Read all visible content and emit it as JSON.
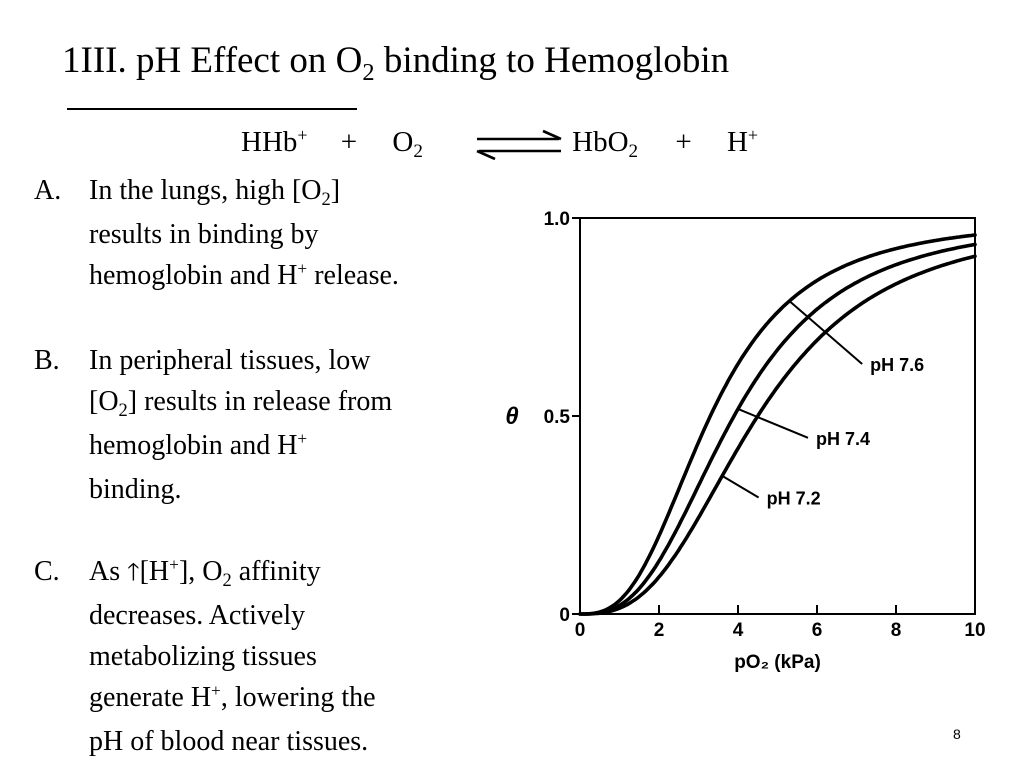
{
  "slide": {
    "title": {
      "main": "1III. pH Effect on O",
      "sub": "2",
      "rest": " binding to Hemoglobin"
    },
    "equation": {
      "reactant1": {
        "text": "HHb",
        "sup": "+"
      },
      "plus1": "+",
      "reactant2": {
        "text": "O",
        "sub": "2"
      },
      "product1": {
        "text": "HbO",
        "sub": "2"
      },
      "plus2": "+",
      "product2": {
        "text": "H",
        "sup": "+"
      }
    },
    "points": {
      "a": {
        "letter": "A.",
        "l1a": "In the lungs, high [O",
        "l1sub": "2",
        "l1b": "]",
        "l2": "results in binding by",
        "l3a": "hemoglobin and H",
        "l3sup": "+",
        "l3b": " release."
      },
      "b": {
        "letter": "B.",
        "l1": "In peripheral tissues, low",
        "l2a": "[O",
        "l2sub": "2",
        "l2b": "] results in release from",
        "l3a": "hemoglobin and H",
        "l3sup": "+",
        "l4": "binding."
      },
      "c": {
        "letter": "C.",
        "l1a": "As ",
        "l1arrow": "🡑",
        "l1b": "[H",
        "l1sup": "+",
        "l1c": "], O",
        "l1sub": "2",
        "l1d": " affinity",
        "l2": "decreases. Actively",
        "l3": "metabolizing tissues",
        "l4a": "generate H",
        "l4sup": "+",
        "l4b": ", lowering the",
        "l5": "pH of blood near tissues."
      }
    },
    "page_number": "8"
  },
  "chart_data": {
    "type": "line",
    "xlabel": "pO₂ (kPa)",
    "ylabel": "θ",
    "xlim": [
      0,
      10
    ],
    "ylim": [
      0,
      1.0
    ],
    "x_ticks": [
      "0",
      "2",
      "4",
      "6",
      "8",
      "10"
    ],
    "y_ticks": [
      "0",
      "0.5",
      "1.0"
    ],
    "grid": false,
    "series": [
      {
        "name": "pH 7.6",
        "p50": 3.3,
        "hill_n": 2.8,
        "label_at": 5.3
      },
      {
        "name": "pH 7.4",
        "p50": 3.9,
        "hill_n": 2.8,
        "label_at": 4.0
      },
      {
        "name": "pH 7.2",
        "p50": 4.5,
        "hill_n": 2.8,
        "label_at": 3.6
      }
    ]
  }
}
